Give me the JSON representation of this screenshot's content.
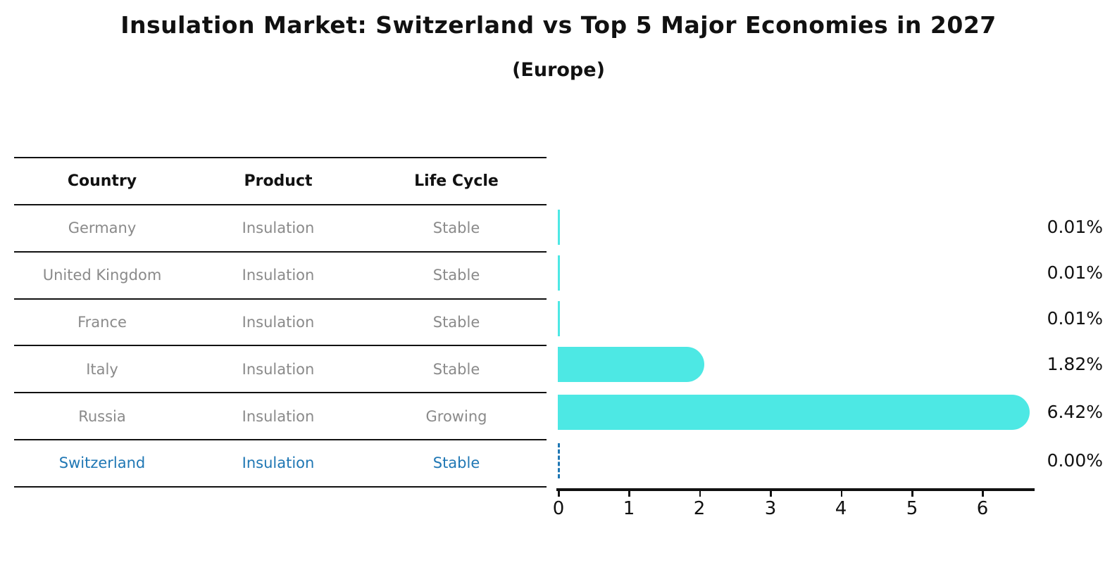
{
  "header": {
    "title": "Insulation Market: Switzerland vs Top 5 Major Economies in 2027",
    "subtitle": "(Europe)"
  },
  "table": {
    "headers": [
      "Country",
      "Product",
      "Life Cycle"
    ],
    "rows": [
      {
        "country": "Germany",
        "product": "Insulation",
        "life_cycle": "Stable"
      },
      {
        "country": "United Kingdom",
        "product": "Insulation",
        "life_cycle": "Stable"
      },
      {
        "country": "France",
        "product": "Insulation",
        "life_cycle": "Stable"
      },
      {
        "country": "Italy",
        "product": "Insulation",
        "life_cycle": "Stable"
      },
      {
        "country": "Russia",
        "product": "Insulation",
        "life_cycle": "Growing"
      },
      {
        "country": "Switzerland",
        "product": "Insulation",
        "life_cycle": "Stable"
      }
    ],
    "highlighted_row": "Switzerland"
  },
  "chart_data": {
    "type": "bar",
    "orientation": "horizontal",
    "title": "Insulation Market: Switzerland vs Top 5 Major Economies in 2027",
    "subtitle": "(Europe)",
    "categories": [
      "Germany",
      "United Kingdom",
      "France",
      "Italy",
      "Russia",
      "Switzerland"
    ],
    "values": [
      0.01,
      0.01,
      0.01,
      1.82,
      6.42,
      0.0
    ],
    "value_labels": [
      "0.01%",
      "0.01%",
      "0.01%",
      "1.82%",
      "6.42%",
      "0.00%"
    ],
    "xticks": [
      "0",
      "1",
      "2",
      "3",
      "4",
      "5",
      "6"
    ],
    "xlim": [
      0,
      6.75
    ],
    "grid": false,
    "legend": "none",
    "bar_color": "#4DE8E4",
    "highlight_color": "#1f77b4",
    "zero_marker": "dashed-line"
  },
  "colors": {
    "bar": "#4DE8E4",
    "highlight": "#1f77b4",
    "muted_text": "#8a8a8a",
    "text": "#111111",
    "background": "#ffffff"
  }
}
